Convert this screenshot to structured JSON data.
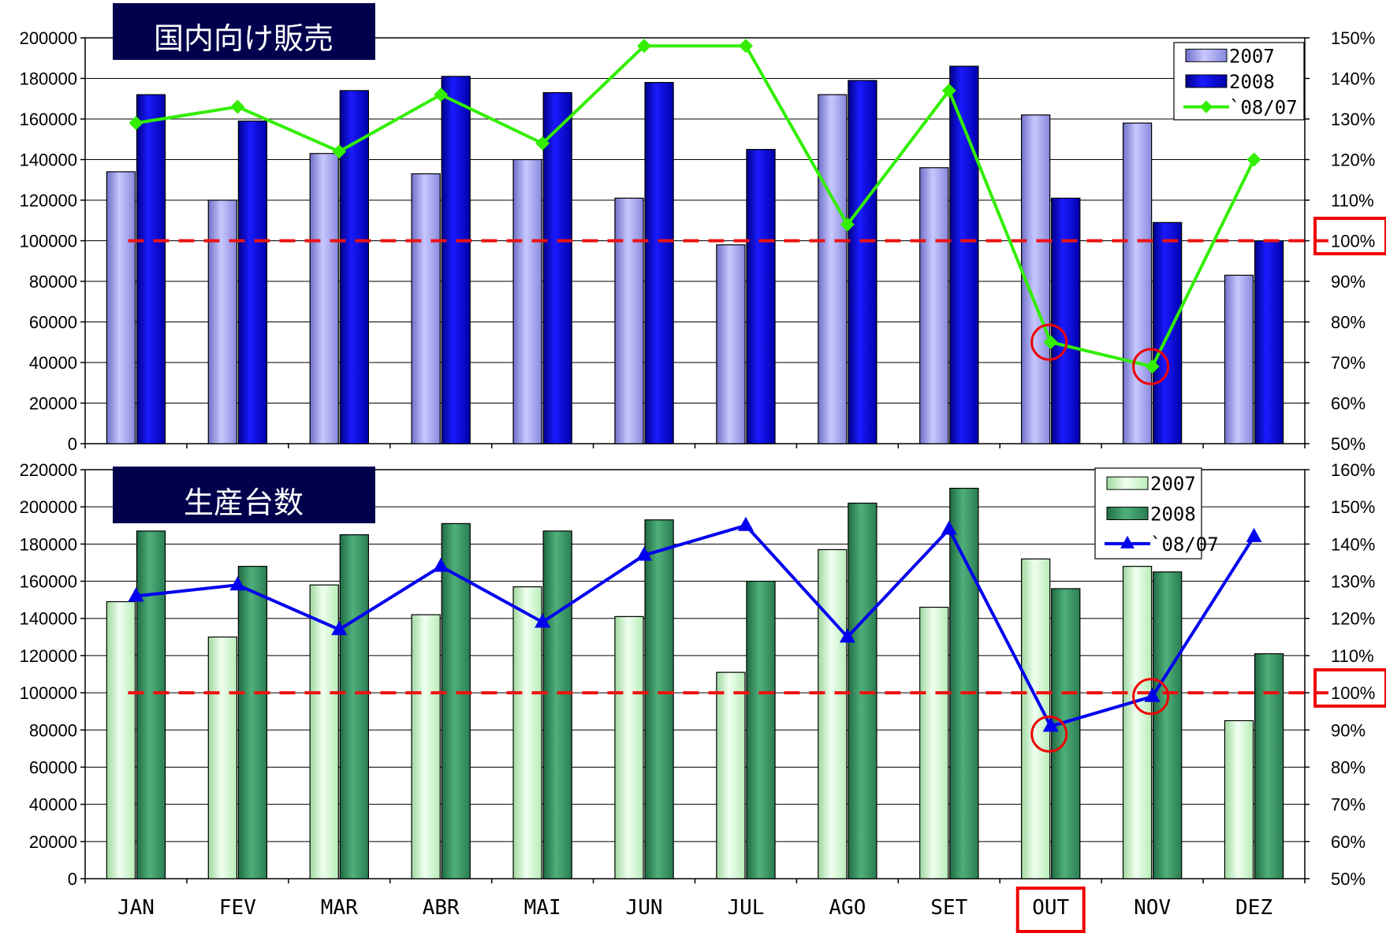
{
  "chart_data": [
    {
      "type": "bar",
      "title": "国内向け販売",
      "categories": [
        "JAN",
        "FEV",
        "MAR",
        "ABR",
        "MAI",
        "JUN",
        "JUL",
        "AGO",
        "SET",
        "OUT",
        "NOV",
        "DEZ"
      ],
      "series": [
        {
          "name": "2007",
          "values": [
            134000,
            120000,
            143000,
            133000,
            140000,
            121000,
            98000,
            172000,
            136000,
            162000,
            158000,
            83000
          ],
          "color": "#9999ee"
        },
        {
          "name": "2008",
          "values": [
            172000,
            159000,
            174000,
            181000,
            173000,
            178000,
            145000,
            179000,
            186000,
            121000,
            109000,
            100000
          ],
          "color": "#0000cc"
        }
      ],
      "line": {
        "name": "`08/07",
        "values": [
          1.29,
          1.33,
          1.22,
          1.36,
          1.24,
          1.48,
          1.48,
          1.04,
          1.37,
          0.75,
          0.69,
          1.2
        ],
        "color": "#33ee00",
        "marker": "diamond"
      },
      "y_ticks": [
        "200000",
        "180000",
        "160000",
        "140000",
        "120000",
        "100000",
        "80000",
        "60000",
        "40000",
        "20000",
        "0"
      ],
      "y_right_ticks": [
        "150%",
        "140%",
        "130%",
        "120%",
        "110%",
        "100%",
        "90%",
        "80%",
        "70%",
        "60%",
        "50%"
      ],
      "ylim": [
        0,
        200000
      ],
      "y2lim": [
        0.5,
        1.5
      ],
      "reference_line": 1.0,
      "highlighted_points": [
        "OUT",
        "NOV"
      ],
      "highlighted_tick": "100%",
      "legend_position": "top-right",
      "grid": true
    },
    {
      "type": "bar",
      "title": "生産台数",
      "categories": [
        "JAN",
        "FEV",
        "MAR",
        "ABR",
        "MAI",
        "JUN",
        "JUL",
        "AGO",
        "SET",
        "OUT",
        "NOV",
        "DEZ"
      ],
      "series": [
        {
          "name": "2007",
          "values": [
            149000,
            130000,
            158000,
            142000,
            157000,
            141000,
            111000,
            177000,
            146000,
            172000,
            168000,
            85000
          ],
          "color": "#ccf5cc"
        },
        {
          "name": "2008",
          "values": [
            187000,
            168000,
            185000,
            191000,
            187000,
            193000,
            160000,
            202000,
            210000,
            156000,
            165000,
            121000
          ],
          "color": "#2e8b57"
        }
      ],
      "line": {
        "name": "`08/07",
        "values": [
          1.26,
          1.29,
          1.17,
          1.34,
          1.19,
          1.37,
          1.45,
          1.15,
          1.44,
          0.91,
          0.99,
          1.42
        ],
        "color": "#0000ee",
        "marker": "triangle"
      },
      "y_ticks": [
        "220000",
        "200000",
        "180000",
        "160000",
        "140000",
        "120000",
        "100000",
        "80000",
        "60000",
        "40000",
        "20000",
        "0"
      ],
      "y_right_ticks": [
        "160%",
        "150%",
        "140%",
        "130%",
        "120%",
        "110%",
        "100%",
        "90%",
        "80%",
        "70%",
        "60%",
        "50%"
      ],
      "ylim": [
        0,
        220000
      ],
      "y2lim": [
        0.5,
        1.6
      ],
      "reference_line": 1.0,
      "highlighted_points": [
        "OUT",
        "NOV"
      ],
      "highlighted_tick": "100%",
      "highlighted_category": "OUT",
      "legend_position": "top-right",
      "grid": true
    }
  ],
  "accent_colors": {
    "highlight": "#ee0000",
    "title_bg": "#00004d",
    "reference_line": "#ee1111"
  }
}
